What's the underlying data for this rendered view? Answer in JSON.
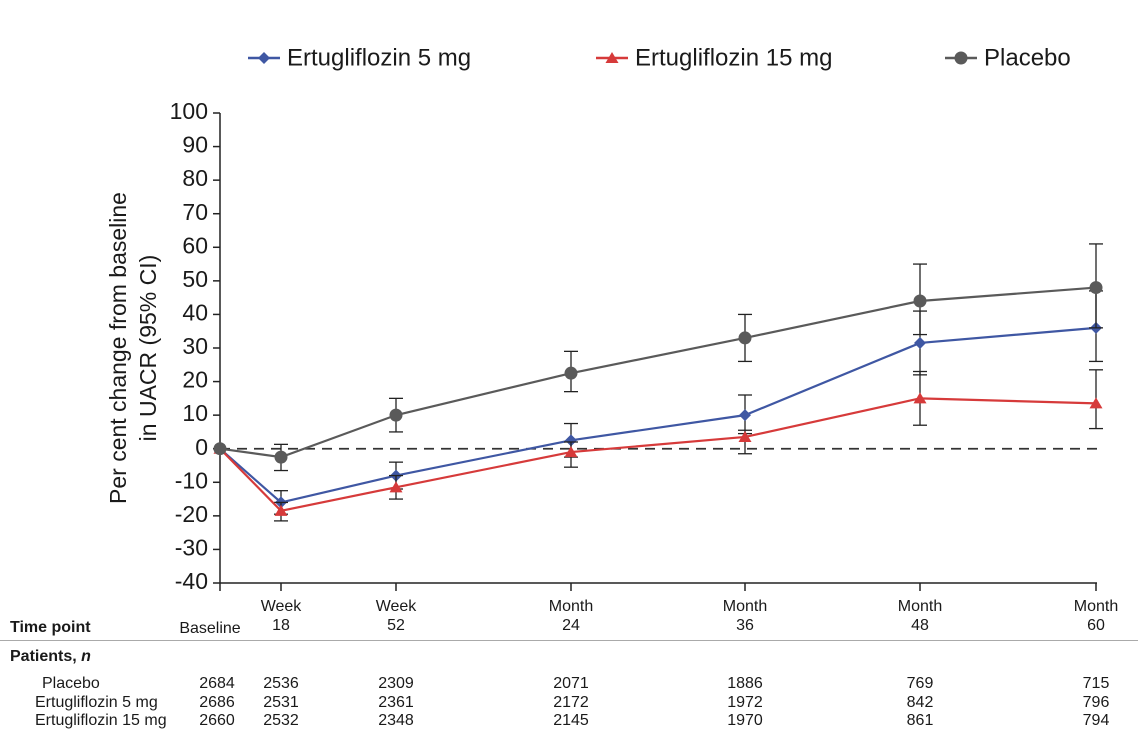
{
  "chart_data": {
    "type": "line",
    "categories": [
      "Baseline",
      "Week 18",
      "Week 52",
      "Month 24",
      "Month 36",
      "Month 48",
      "Month 60"
    ],
    "series": [
      {
        "name": "Ertugliflozin 5 mg",
        "color": "#3f57a3",
        "marker": "diamond",
        "values": [
          0,
          -16,
          -8,
          2.5,
          10,
          31.5,
          36
        ],
        "ci_lower": [
          null,
          -19.5,
          -12,
          -2.5,
          4.5,
          22,
          26
        ],
        "ci_upper": [
          null,
          -12.5,
          -4,
          7.5,
          16,
          41,
          47
        ]
      },
      {
        "name": "Ertugliflozin 15 mg",
        "color": "#d63a3a",
        "marker": "triangle",
        "values": [
          0,
          -18.5,
          -11.5,
          -1,
          3.5,
          15,
          13.5
        ],
        "ci_lower": [
          null,
          -21.5,
          -15,
          -5.5,
          -1.5,
          7,
          6
        ],
        "ci_upper": [
          null,
          -16,
          -8,
          2,
          5.5,
          23,
          23.5
        ]
      },
      {
        "name": "Placebo",
        "color": "#5a5a5a",
        "marker": "circle",
        "values": [
          0,
          -2.5,
          10,
          22.5,
          33,
          44,
          48
        ],
        "ci_lower": [
          null,
          -6.5,
          5,
          17,
          26,
          34,
          36
        ],
        "ci_upper": [
          null,
          1.3,
          15,
          29,
          40,
          55,
          61
        ]
      }
    ],
    "ylabel": [
      "Per cent change from baseline",
      "in UACR (95% CI)"
    ],
    "ylim": [
      -40,
      100
    ],
    "yticks": [
      -40,
      -30,
      -20,
      -10,
      0,
      10,
      20,
      30,
      40,
      50,
      60,
      70,
      80,
      90,
      100
    ],
    "reference_line": 0
  },
  "table": {
    "header": "Time point",
    "section": "Patients,",
    "section_var": "n",
    "rows": [
      {
        "label": "Placebo",
        "values": [
          2684,
          2536,
          2309,
          2071,
          1886,
          769,
          715
        ]
      },
      {
        "label": "Ertugliflozin 5 mg",
        "values": [
          2686,
          2531,
          2361,
          2172,
          1972,
          842,
          796
        ]
      },
      {
        "label": "Ertugliflozin 15 mg",
        "values": [
          2660,
          2532,
          2348,
          2145,
          1970,
          861,
          794
        ]
      }
    ]
  }
}
